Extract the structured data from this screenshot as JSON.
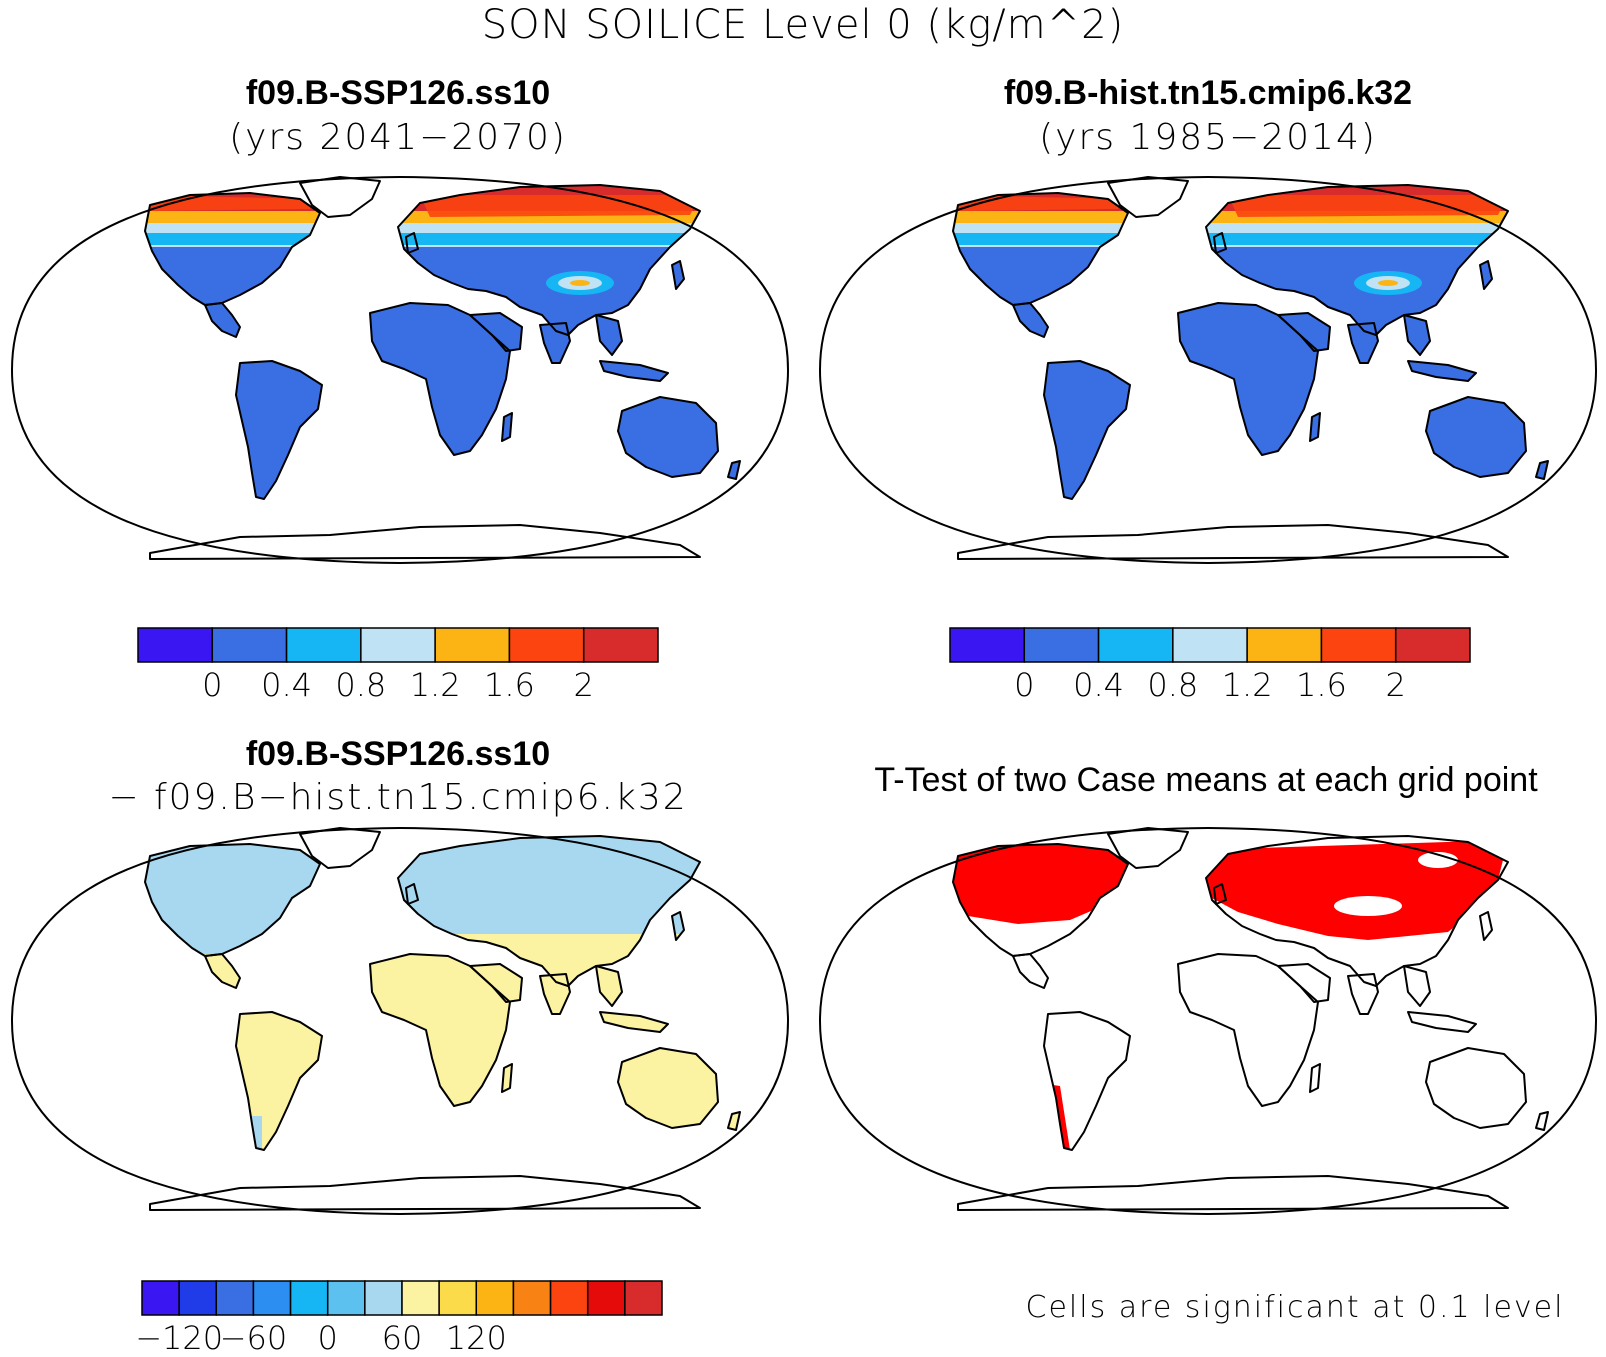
{
  "figure": {
    "title": "SON SOILICE Level 0 (kg/m^2)"
  },
  "panels": [
    {
      "id": "case1",
      "title": "f09.B-SSP126.ss10",
      "subtitle": "(yrs 2041−2070)"
    },
    {
      "id": "case2",
      "title": "f09.B-hist.tn15.cmip6.k32",
      "subtitle": "(yrs 1985−2014)"
    },
    {
      "id": "difference",
      "title": "f09.B-SSP126.ss10",
      "subtitle": "− f09.B−hist.tn15.cmip6.k32"
    },
    {
      "id": "ttest",
      "title": "T-Test of two Case means at each grid point",
      "note": "Cells are significant at 0.1 level"
    }
  ],
  "colorbars": {
    "cases": {
      "colors": [
        "#3a17f2",
        "#3a6ee3",
        "#16b5f3",
        "#bfe2f5",
        "#fbb414",
        "#fb4410",
        "#d82c2c"
      ],
      "labels": [
        "0",
        "0.4",
        "0.8",
        "1.2",
        "1.6",
        "2"
      ]
    },
    "difference": {
      "colors": [
        "#3a17f2",
        "#1f3ce8",
        "#3a6ee3",
        "#2b8ef0",
        "#16b5f3",
        "#5cc1ee",
        "#a8d8f0",
        "#fbf3a2",
        "#fbdb4a",
        "#fbb414",
        "#f98214",
        "#fb4410",
        "#e50b0b",
        "#d82c2c"
      ],
      "labels": [
        "−120",
        "−60",
        "0",
        "60",
        "120"
      ]
    }
  },
  "legend_colors": {
    "ocean": "#ffffff",
    "land_low_ice": "#3a6ee3",
    "diff_positive": "#fbf3a2",
    "diff_negative": "#a8d8f0",
    "significant": "#ff0000"
  }
}
